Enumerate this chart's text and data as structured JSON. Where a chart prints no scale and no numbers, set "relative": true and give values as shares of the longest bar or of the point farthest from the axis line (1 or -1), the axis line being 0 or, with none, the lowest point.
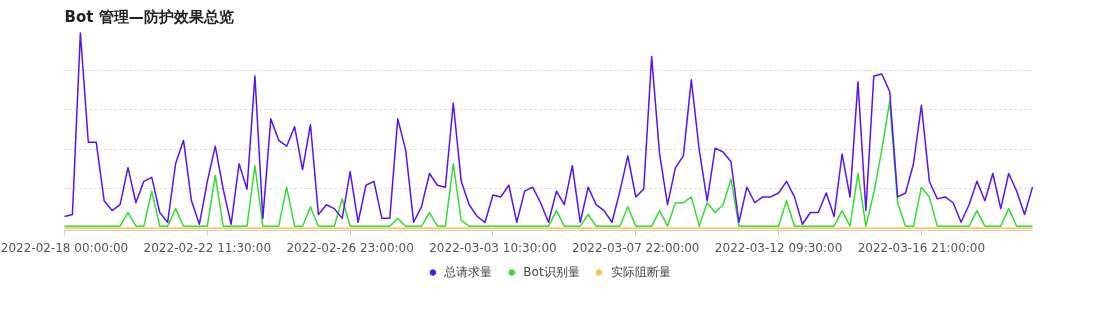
{
  "chart_data": {
    "type": "line",
    "title": "Bot 管理—防护效果总览",
    "relative": true,
    "grid": "y",
    "legend": "bottom",
    "marker": "none",
    "line_style": "solid",
    "categories": [
      "2022-02-18 00:00:00",
      null,
      null,
      null,
      null,
      null,
      null,
      null,
      null,
      null,
      null,
      null,
      null,
      null,
      null,
      null,
      null,
      null,
      "2022-02-22 11:30:00",
      null,
      null,
      null,
      null,
      null,
      null,
      null,
      null,
      null,
      null,
      null,
      null,
      null,
      null,
      null,
      null,
      null,
      "2022-02-26 23:00:00",
      null,
      null,
      null,
      null,
      null,
      null,
      null,
      null,
      null,
      null,
      null,
      null,
      null,
      null,
      null,
      null,
      null,
      "2022-03-03 10:30:00",
      null,
      null,
      null,
      null,
      null,
      null,
      null,
      null,
      null,
      null,
      null,
      null,
      null,
      null,
      null,
      null,
      null,
      "2022-03-07 22:00:00",
      null,
      null,
      null,
      null,
      null,
      null,
      null,
      null,
      null,
      null,
      null,
      null,
      null,
      null,
      null,
      null,
      null,
      "2022-03-12 09:30:00",
      null,
      null,
      null,
      null,
      null,
      null,
      null,
      null,
      null,
      null,
      null,
      null,
      null,
      null,
      null,
      null,
      null,
      "2022-03-16 21:00:00",
      null,
      null,
      null,
      null,
      null,
      null,
      null,
      null,
      null,
      null,
      null,
      null,
      null,
      null
    ],
    "series": [
      {
        "name": "总请求量",
        "color": "#5a12f0",
        "values": [
          0.06,
          0.07,
          1,
          0.44,
          0.44,
          0.14,
          0.09,
          0.12,
          0.31,
          0.13,
          0.24,
          0.26,
          0.08,
          0.03,
          0.33,
          0.45,
          0.14,
          0.02,
          0.24,
          0.42,
          0.2,
          0.02,
          0.33,
          0.2,
          0.78,
          0.05,
          0.56,
          0.45,
          0.42,
          0.52,
          0.3,
          0.53,
          0.07,
          0.12,
          0.1,
          0.05,
          0.29,
          0.03,
          0.22,
          0.24,
          0.05,
          0.05,
          0.56,
          0.4,
          0.03,
          0.11,
          0.28,
          0.22,
          0.21,
          0.64,
          0.24,
          0.12,
          0.06,
          0.03,
          0.17,
          0.16,
          0.22,
          0.03,
          0.19,
          0.21,
          0.13,
          0.03,
          0.19,
          0.12,
          0.32,
          0.03,
          0.21,
          0.12,
          0.09,
          0.03,
          0.19,
          0.37,
          0.16,
          0.2,
          0.88,
          0.38,
          0.12,
          0.31,
          0.37,
          0.76,
          0.4,
          0.14,
          0.41,
          0.39,
          0.34,
          0.03,
          0.21,
          0.13,
          0.16,
          0.16,
          0.18,
          0.24,
          0.16,
          0.02,
          0.08,
          0.08,
          0.18,
          0.06,
          0.38,
          0.16,
          0.75,
          0.09,
          0.78,
          0.79,
          0.7,
          0.16,
          0.18,
          0.33,
          0.63,
          0.24,
          0.15,
          0.16,
          0.13,
          0.03,
          0.12,
          0.24,
          0.14,
          0.28,
          0.1,
          0.28,
          0.19,
          0.07,
          0.21
        ]
      },
      {
        "name": "Bot识别量",
        "color": "#33dd33",
        "values": [
          0.01,
          0.01,
          0.01,
          0.01,
          0.01,
          0.01,
          0.01,
          0.01,
          0.08,
          0.01,
          0.01,
          0.19,
          0.01,
          0.01,
          0.1,
          0.01,
          0.01,
          0.01,
          0.01,
          0.27,
          0.01,
          0.01,
          0.01,
          0.01,
          0.32,
          0.01,
          0.01,
          0.01,
          0.21,
          0.01,
          0.01,
          0.11,
          0.01,
          0.01,
          0.01,
          0.15,
          0.01,
          0.01,
          0.01,
          0.01,
          0.01,
          0.01,
          0.05,
          0.01,
          0.01,
          0.01,
          0.08,
          0.01,
          0.01,
          0.33,
          0.04,
          0.01,
          0.01,
          0.01,
          0.01,
          0.01,
          0.01,
          0.01,
          0.01,
          0.01,
          0.01,
          0.01,
          0.09,
          0.01,
          0.01,
          0.01,
          0.07,
          0.01,
          0.01,
          0.01,
          0.01,
          0.11,
          0.01,
          0.01,
          0.01,
          0.09,
          0.01,
          0.13,
          0.13,
          0.16,
          0.01,
          0.13,
          0.08,
          0.12,
          0.25,
          0.01,
          0.01,
          0.01,
          0.01,
          0.01,
          0.01,
          0.14,
          0.01,
          0.01,
          0.01,
          0.01,
          0.01,
          0.01,
          0.09,
          0.01,
          0.28,
          0.01,
          0.18,
          0.4,
          0.65,
          0.13,
          0.01,
          0.01,
          0.21,
          0.16,
          0.01,
          0.01,
          0.01,
          0.01,
          0.01,
          0.09,
          0.01,
          0.01,
          0.01,
          0.1,
          0.01,
          0.01,
          0.01
        ]
      },
      {
        "name": "实际阻断量",
        "color": "#ffc04d",
        "values": [
          0,
          0,
          0,
          0,
          0,
          0,
          0,
          0,
          0,
          0,
          0,
          0,
          0,
          0,
          0,
          0,
          0,
          0,
          0,
          0,
          0,
          0,
          0,
          0,
          0,
          0,
          0,
          0,
          0,
          0,
          0,
          0,
          0,
          0,
          0,
          0,
          0,
          0,
          0,
          0,
          0,
          0,
          0,
          0,
          0,
          0,
          0,
          0,
          0,
          0,
          0,
          0,
          0,
          0,
          0,
          0,
          0,
          0,
          0,
          0,
          0,
          0,
          0,
          0,
          0,
          0,
          0,
          0,
          0,
          0,
          0,
          0,
          0,
          0,
          0,
          0,
          0,
          0,
          0,
          0,
          0,
          0,
          0,
          0,
          0,
          0,
          0,
          0,
          0,
          0,
          0,
          0,
          0,
          0,
          0,
          0,
          0,
          0,
          0,
          0,
          0,
          0,
          0,
          0,
          0,
          0,
          0,
          0,
          0,
          0,
          0,
          0,
          0,
          0,
          0,
          0,
          0,
          0,
          0,
          0,
          0,
          0,
          0
        ]
      }
    ]
  }
}
